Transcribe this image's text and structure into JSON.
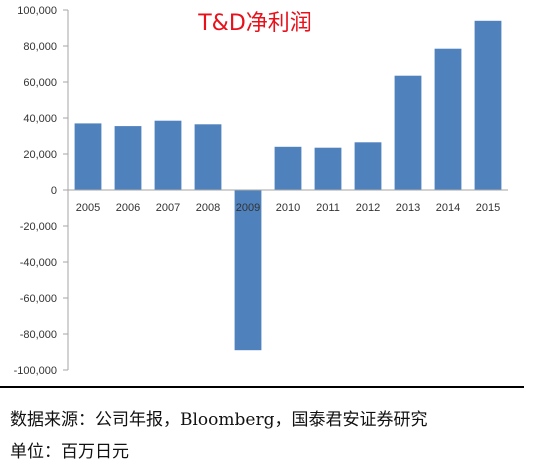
{
  "chart_data": {
    "type": "bar",
    "title": "T&D净利润",
    "categories": [
      "2005",
      "2006",
      "2007",
      "2008",
      "2009",
      "2010",
      "2011",
      "2012",
      "2013",
      "2014",
      "2015"
    ],
    "values": [
      37000,
      35500,
      38500,
      36500,
      -89000,
      24000,
      23500,
      26500,
      63500,
      78500,
      94000
    ],
    "ylim": [
      -100000,
      100000
    ],
    "yticks": [
      -100000,
      -80000,
      -60000,
      -40000,
      -20000,
      0,
      20000,
      40000,
      60000,
      80000,
      100000
    ],
    "ytick_labels": [
      "-100,000",
      "-80,000",
      "-60,000",
      "-40,000",
      "-20,000",
      "0",
      "20,000",
      "40,000",
      "60,000",
      "80,000",
      "100,000"
    ],
    "bar_color": "#4f81bd",
    "grid": false,
    "legend": "none"
  },
  "source_text": "数据来源：公司年报，Bloomberg，国泰君安证券研究",
  "unit_text": "单位：百万日元"
}
